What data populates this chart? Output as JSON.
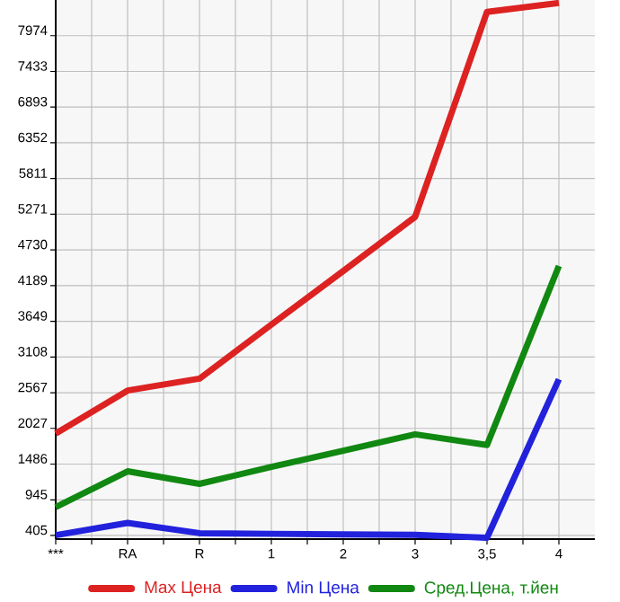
{
  "chart_data": {
    "type": "line",
    "categories": [
      "***",
      "RA",
      "R",
      "1",
      "2",
      "3",
      "3,5",
      "4"
    ],
    "series": [
      {
        "name": "Max Цена",
        "color": "#dd2222",
        "values": [
          1950,
          2600,
          2780,
          3600,
          4410,
          5230,
          8335,
          8470
        ]
      },
      {
        "name": "Min Цена",
        "color": "#2222dd",
        "values": [
          410,
          595,
          440,
          430,
          420,
          415,
          370,
          2770
        ]
      },
      {
        "name": "Сред.Цена, т.йен",
        "color": "#118811",
        "values": [
          836,
          1377,
          1187,
          1443,
          1688,
          1937,
          1775,
          4487
        ]
      }
    ],
    "ylim": [
      350,
      8515
    ],
    "yticks": [
      405,
      945,
      1486,
      2027,
      2567,
      3108,
      3649,
      4189,
      4730,
      5271,
      5811,
      6352,
      6893,
      7433,
      7974
    ],
    "grid": true,
    "legend": "bottom",
    "marker": "none",
    "line_style": "solid"
  }
}
